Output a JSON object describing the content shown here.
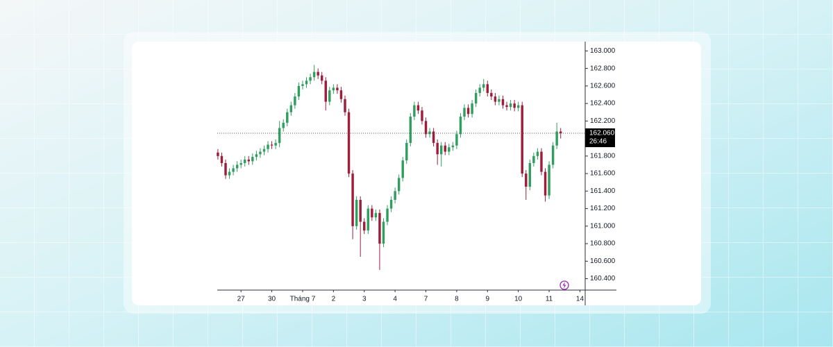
{
  "chart_data": {
    "type": "candlestick",
    "x": [
      0,
      1,
      2,
      3,
      4,
      5,
      6,
      7,
      8,
      9,
      10,
      11,
      12,
      13,
      14,
      15,
      16,
      17,
      18,
      19,
      20,
      21,
      22,
      23,
      24,
      25,
      26,
      27,
      28,
      29,
      30,
      31,
      32,
      33,
      34,
      35,
      36,
      37,
      38,
      39,
      40,
      41,
      42,
      43,
      44,
      45,
      46,
      47,
      48,
      49,
      50,
      51,
      52,
      53,
      54,
      55,
      56,
      57,
      58,
      59,
      60,
      61,
      62,
      63,
      64,
      65,
      66,
      67,
      68,
      69,
      70,
      71,
      72,
      73,
      74,
      75,
      76,
      77,
      78,
      79,
      80,
      81,
      82,
      83,
      84,
      85,
      86,
      87,
      88,
      89
    ],
    "open": [
      161.84,
      161.8,
      161.72,
      161.58,
      161.62,
      161.66,
      161.7,
      161.72,
      161.76,
      161.74,
      161.79,
      161.82,
      161.85,
      161.88,
      161.93,
      161.92,
      161.95,
      162.12,
      162.18,
      162.3,
      162.38,
      162.48,
      162.6,
      162.62,
      162.66,
      162.7,
      162.76,
      162.72,
      162.66,
      162.42,
      162.55,
      162.58,
      162.55,
      162.45,
      162.3,
      161.6,
      161.0,
      161.3,
      161.05,
      160.95,
      161.2,
      161.1,
      161.15,
      160.8,
      161.05,
      161.2,
      161.3,
      161.4,
      161.55,
      161.75,
      161.95,
      162.25,
      162.38,
      162.32,
      162.2,
      162.05,
      162.08,
      161.95,
      161.82,
      161.92,
      161.85,
      161.9,
      161.92,
      162.05,
      162.25,
      162.35,
      162.28,
      162.4,
      162.52,
      162.58,
      162.62,
      162.52,
      162.48,
      162.42,
      162.45,
      162.38,
      162.36,
      162.4,
      162.35,
      162.38,
      161.6,
      161.45,
      161.72,
      161.8,
      161.85,
      161.62,
      161.35,
      161.7,
      161.92,
      162.08
    ],
    "high": [
      161.88,
      161.84,
      161.76,
      161.66,
      161.7,
      161.74,
      161.76,
      161.8,
      161.8,
      161.83,
      161.86,
      161.89,
      161.92,
      161.97,
      161.97,
      161.99,
      162.2,
      162.22,
      162.34,
      162.42,
      162.52,
      162.64,
      162.66,
      162.7,
      162.74,
      162.84,
      162.8,
      162.76,
      162.7,
      162.59,
      162.62,
      162.62,
      162.59,
      162.49,
      162.34,
      161.64,
      161.34,
      161.34,
      161.09,
      161.24,
      161.24,
      161.19,
      161.19,
      161.09,
      161.24,
      161.34,
      161.44,
      161.59,
      161.79,
      161.99,
      162.29,
      162.42,
      162.42,
      162.36,
      162.24,
      162.12,
      162.12,
      161.99,
      161.96,
      161.96,
      161.94,
      161.96,
      162.09,
      162.29,
      162.39,
      162.39,
      162.44,
      162.56,
      162.62,
      162.68,
      162.66,
      162.56,
      162.52,
      162.49,
      162.49,
      162.42,
      162.44,
      162.44,
      162.42,
      162.42,
      161.64,
      161.76,
      161.84,
      161.89,
      161.89,
      161.66,
      161.74,
      161.96,
      162.18,
      162.12
    ],
    "low": [
      161.76,
      161.68,
      161.54,
      161.54,
      161.58,
      161.62,
      161.66,
      161.68,
      161.7,
      161.7,
      161.75,
      161.78,
      161.81,
      161.84,
      161.88,
      161.88,
      161.9,
      162.08,
      162.14,
      162.26,
      162.34,
      162.44,
      162.56,
      162.58,
      162.62,
      162.66,
      162.68,
      162.62,
      162.32,
      162.38,
      162.51,
      162.51,
      162.41,
      162.26,
      161.56,
      160.85,
      160.96,
      160.65,
      160.91,
      160.91,
      161.06,
      161.06,
      160.5,
      160.76,
      161.01,
      161.16,
      161.26,
      161.36,
      161.51,
      161.71,
      161.91,
      162.21,
      162.28,
      162.16,
      162.01,
      162.01,
      161.91,
      161.7,
      161.68,
      161.81,
      161.81,
      161.86,
      161.88,
      162.01,
      162.21,
      162.24,
      162.24,
      162.36,
      162.48,
      162.54,
      162.48,
      162.44,
      162.38,
      162.38,
      162.34,
      162.32,
      162.32,
      162.31,
      162.31,
      161.56,
      161.3,
      161.41,
      161.68,
      161.76,
      161.58,
      161.28,
      161.31,
      161.66,
      161.88,
      162.0
    ],
    "close": [
      161.8,
      161.72,
      161.58,
      161.62,
      161.66,
      161.7,
      161.72,
      161.76,
      161.74,
      161.79,
      161.82,
      161.85,
      161.88,
      161.93,
      161.92,
      161.95,
      162.12,
      162.18,
      162.3,
      162.38,
      162.48,
      162.6,
      162.62,
      162.66,
      162.7,
      162.76,
      162.72,
      162.66,
      162.42,
      162.55,
      162.58,
      162.55,
      162.45,
      162.3,
      161.6,
      161.0,
      161.3,
      161.05,
      160.95,
      161.2,
      161.1,
      161.15,
      160.8,
      161.05,
      161.2,
      161.3,
      161.4,
      161.55,
      161.75,
      161.95,
      162.25,
      162.38,
      162.32,
      162.2,
      162.05,
      162.08,
      161.95,
      161.82,
      161.92,
      161.85,
      161.9,
      161.92,
      162.05,
      162.25,
      162.35,
      162.28,
      162.4,
      162.52,
      162.58,
      162.62,
      162.52,
      162.48,
      162.42,
      162.45,
      162.38,
      162.36,
      162.4,
      162.35,
      162.38,
      161.6,
      161.45,
      161.72,
      161.8,
      161.85,
      161.62,
      161.35,
      161.7,
      161.92,
      162.08,
      162.06
    ],
    "up_color": "#2f9e5e",
    "down_color": "#9e1d3a",
    "xlim": [
      -0.16,
      95.36
    ],
    "xticks": [
      {
        "value": 6,
        "label": "27"
      },
      {
        "value": 14,
        "label": "30"
      },
      {
        "value": 22,
        "label": "Tháng 7"
      },
      {
        "value": 30,
        "label": "2"
      },
      {
        "value": 38,
        "label": "3"
      },
      {
        "value": 46,
        "label": "4"
      },
      {
        "value": 54,
        "label": "7"
      },
      {
        "value": 62,
        "label": "8"
      },
      {
        "value": 70,
        "label": "9"
      },
      {
        "value": 78,
        "label": "10"
      },
      {
        "value": 86,
        "label": "11"
      },
      {
        "value": 94,
        "label": "14"
      }
    ],
    "ylim": [
      160.27,
      163.09
    ],
    "yticks": [
      {
        "value": 160.4,
        "label": "160.400"
      },
      {
        "value": 160.6,
        "label": "160.600"
      },
      {
        "value": 160.8,
        "label": "160.800"
      },
      {
        "value": 161.0,
        "label": "161.000"
      },
      {
        "value": 161.2,
        "label": "161.200"
      },
      {
        "value": 161.4,
        "label": "161.400"
      },
      {
        "value": 161.6,
        "label": "161.600"
      },
      {
        "value": 161.8,
        "label": "161.800"
      },
      {
        "value": 162.2,
        "label": "162.200"
      },
      {
        "value": 162.4,
        "label": "162.400"
      },
      {
        "value": 162.6,
        "label": "162.600"
      },
      {
        "value": 162.8,
        "label": "162.800"
      },
      {
        "value": 163.0,
        "label": "163.000"
      }
    ],
    "last_price": {
      "value": 162.06,
      "label": "162.060"
    },
    "countdown": "26:46",
    "grid": false
  }
}
